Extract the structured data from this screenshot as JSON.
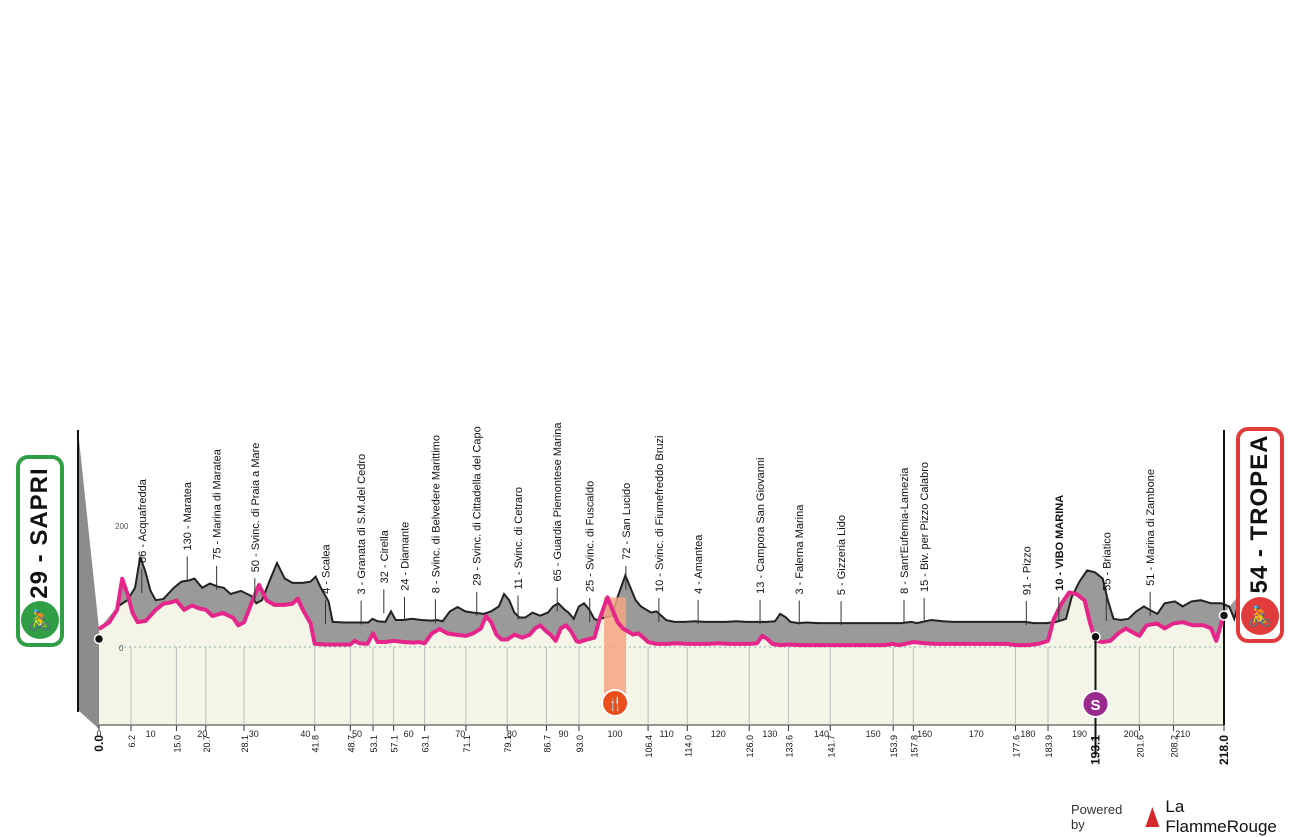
{
  "start_badge": {
    "label": "29 - SAPRI",
    "icon": "cyclist-icon"
  },
  "finish_badge": {
    "label": "54 - TROPEA",
    "icon": "cyclist-icon"
  },
  "footer": {
    "powered_by": "Powered by",
    "brand": "La FlammeRouge"
  },
  "colors": {
    "profile_gray": "#9a9a9a",
    "road_line": "#e6258a",
    "ground": "#f4f5e6",
    "feed_zone": "#f4a582",
    "sprint": "#9b2a8f",
    "start_green": "#2f9e44",
    "finish_red": "#e23b3b"
  },
  "chart_data": {
    "type": "area",
    "x_axis": {
      "range": [
        0,
        218
      ],
      "ticks": [
        0,
        10,
        20,
        30,
        40,
        50,
        60,
        70,
        80,
        90,
        100,
        110,
        120,
        130,
        140,
        150,
        160,
        170,
        180,
        190,
        200,
        210
      ],
      "unit": "km"
    },
    "y_axis": {
      "baseline_label": "0",
      "tick_labels": [
        "0",
        "200"
      ]
    },
    "profile": [
      [
        0,
        29
      ],
      [
        2,
        40
      ],
      [
        3.5,
        60
      ],
      [
        4.5,
        110
      ],
      [
        5.5,
        86
      ],
      [
        6.5,
        55
      ],
      [
        7.5,
        40
      ],
      [
        9,
        42
      ],
      [
        11,
        60
      ],
      [
        12.5,
        70
      ],
      [
        14,
        72
      ],
      [
        15,
        75
      ],
      [
        16.5,
        60
      ],
      [
        18,
        67
      ],
      [
        19.5,
        62
      ],
      [
        20.7,
        60
      ],
      [
        22,
        50
      ],
      [
        24,
        55
      ],
      [
        26,
        47
      ],
      [
        27,
        35
      ],
      [
        28.1,
        40
      ],
      [
        29.5,
        70
      ],
      [
        31,
        100
      ],
      [
        32.5,
        75
      ],
      [
        34,
        68
      ],
      [
        36,
        68
      ],
      [
        37.5,
        70
      ],
      [
        38.5,
        78
      ],
      [
        39.5,
        60
      ],
      [
        41,
        38
      ],
      [
        41.8,
        5
      ],
      [
        44,
        4
      ],
      [
        46,
        4
      ],
      [
        48.7,
        4
      ],
      [
        49.5,
        10
      ],
      [
        50.5,
        6
      ],
      [
        52,
        5
      ],
      [
        53.1,
        22
      ],
      [
        54,
        8
      ],
      [
        55.5,
        8
      ],
      [
        57.1,
        10
      ],
      [
        59,
        8
      ],
      [
        61,
        7
      ],
      [
        62,
        8
      ],
      [
        63.1,
        6
      ],
      [
        64.5,
        22
      ],
      [
        66,
        29
      ],
      [
        67.5,
        22
      ],
      [
        69,
        20
      ],
      [
        71.1,
        18
      ],
      [
        72.5,
        22
      ],
      [
        74,
        30
      ],
      [
        75,
        50
      ],
      [
        76,
        40
      ],
      [
        77,
        20
      ],
      [
        78,
        12
      ],
      [
        79.1,
        12
      ],
      [
        80.5,
        20
      ],
      [
        82,
        15
      ],
      [
        83.5,
        20
      ],
      [
        84.5,
        30
      ],
      [
        85.5,
        35
      ],
      [
        86.7,
        25
      ],
      [
        87.5,
        20
      ],
      [
        88.5,
        10
      ],
      [
        89.5,
        30
      ],
      [
        90.5,
        35
      ],
      [
        91.5,
        25
      ],
      [
        92.5,
        10
      ],
      [
        93,
        8
      ],
      [
        94.5,
        12
      ],
      [
        96,
        15
      ],
      [
        97,
        45
      ],
      [
        98.5,
        80
      ],
      [
        99.5,
        60
      ],
      [
        100.5,
        40
      ],
      [
        101.5,
        30
      ],
      [
        102.5,
        25
      ],
      [
        103.5,
        20
      ],
      [
        104.5,
        22
      ],
      [
        105.5,
        15
      ],
      [
        106.4,
        8
      ],
      [
        108,
        5
      ],
      [
        110,
        5
      ],
      [
        112,
        6
      ],
      [
        114,
        5
      ],
      [
        116,
        5
      ],
      [
        118,
        5
      ],
      [
        120,
        6
      ],
      [
        122,
        5
      ],
      [
        124,
        5
      ],
      [
        126,
        5
      ],
      [
        127.5,
        6
      ],
      [
        128.5,
        18
      ],
      [
        129.5,
        13
      ],
      [
        130.5,
        5
      ],
      [
        132,
        3
      ],
      [
        133.6,
        4
      ],
      [
        136,
        3
      ],
      [
        138,
        3
      ],
      [
        140,
        3
      ],
      [
        141.7,
        3
      ],
      [
        144,
        3
      ],
      [
        146,
        3
      ],
      [
        148,
        3
      ],
      [
        150,
        3
      ],
      [
        152,
        3
      ],
      [
        153.9,
        5
      ],
      [
        155,
        3
      ],
      [
        157.8,
        8
      ],
      [
        160,
        6
      ],
      [
        162,
        5
      ],
      [
        164,
        5
      ],
      [
        166,
        5
      ],
      [
        168,
        5
      ],
      [
        170,
        5
      ],
      [
        172,
        5
      ],
      [
        174,
        5
      ],
      [
        176,
        5
      ],
      [
        177.6,
        3
      ],
      [
        180,
        3
      ],
      [
        182,
        5
      ],
      [
        183.9,
        10
      ],
      [
        185,
        45
      ],
      [
        186.5,
        70
      ],
      [
        188,
        88
      ],
      [
        189.5,
        85
      ],
      [
        191,
        75
      ],
      [
        192,
        40
      ],
      [
        193.1,
        10
      ],
      [
        194.5,
        8
      ],
      [
        196,
        10
      ],
      [
        197.5,
        22
      ],
      [
        199,
        30
      ],
      [
        200,
        25
      ],
      [
        201.6,
        18
      ],
      [
        203,
        35
      ],
      [
        205,
        38
      ],
      [
        206.5,
        30
      ],
      [
        208.2,
        38
      ],
      [
        210,
        40
      ],
      [
        212,
        35
      ],
      [
        214,
        35
      ],
      [
        215.5,
        30
      ],
      [
        216.5,
        10
      ],
      [
        218,
        54
      ]
    ],
    "waypoints": [
      {
        "km": 6.2,
        "label": "86 - Acquafredda"
      },
      {
        "km": 15.0,
        "label": "130 - Maratea"
      },
      {
        "km": 20.7,
        "label": "75 - Marina di Maratea"
      },
      {
        "km": 28.1,
        "label": "50 - Svinc. di Praia a Mare"
      },
      {
        "km": 41.8,
        "label": "4 - Scalea"
      },
      {
        "km": 48.7,
        "label": "3 - Granata di S.M.del Cedro"
      },
      {
        "km": 53.1,
        "label": "32 - Cirella"
      },
      {
        "km": 57.1,
        "label": "24 - Diamante"
      },
      {
        "km": 63.1,
        "label": "8 - Svinc. di Belvedere Marittimo"
      },
      {
        "km": 71.1,
        "label": "29 - Svinc. di Cittadella del Capo"
      },
      {
        "km": 79.1,
        "label": "11 - Svinc. di Cetraro"
      },
      {
        "km": 86.7,
        "label": "65 - Guardia Piemontese Marina"
      },
      {
        "km": 93.0,
        "label": "25 - Svinc. di Fuscaldo"
      },
      {
        "km": 100.0,
        "label": "72 - San Lucido"
      },
      {
        "km": 106.4,
        "label": "10 - Svinc. di Fiumefreddo Bruzi"
      },
      {
        "km": 114.0,
        "label": "4 - Amantea"
      },
      {
        "km": 126.0,
        "label": "13 - Campora San Giovanni"
      },
      {
        "km": 133.6,
        "label": "3 - Falerna Marina"
      },
      {
        "km": 141.7,
        "label": "5 - Gizzeria Lido"
      },
      {
        "km": 153.9,
        "label": "8 - Sant'Eufemia-Lamezia"
      },
      {
        "km": 157.8,
        "label": "15 - Biv. per Pizzo Calabro"
      },
      {
        "km": 177.6,
        "label": "91 - Pizzo"
      },
      {
        "km": 183.9,
        "label": "10 - VIBO MARINA",
        "bold": true
      },
      {
        "km": 193.1,
        "label": "55 - Briatico"
      },
      {
        "km": 201.6,
        "label": "51 - Marina di Zambone"
      }
    ],
    "distance_labels": [
      {
        "km": 0.0,
        "label": "0.0",
        "bold": true
      },
      {
        "km": 6.2,
        "label": "6.2"
      },
      {
        "km": 15.0,
        "label": "15.0"
      },
      {
        "km": 20.7,
        "label": "20.7"
      },
      {
        "km": 28.1,
        "label": "28.1"
      },
      {
        "km": 41.8,
        "label": "41.8"
      },
      {
        "km": 48.7,
        "label": "48.7"
      },
      {
        "km": 53.1,
        "label": "53.1"
      },
      {
        "km": 57.1,
        "label": "57.1"
      },
      {
        "km": 63.1,
        "label": "63.1"
      },
      {
        "km": 71.1,
        "label": "71.1"
      },
      {
        "km": 79.1,
        "label": "79.1"
      },
      {
        "km": 86.7,
        "label": "86.7"
      },
      {
        "km": 93.0,
        "label": "93.0"
      },
      {
        "km": 106.4,
        "label": "106.4"
      },
      {
        "km": 114.0,
        "label": "114.0"
      },
      {
        "km": 126.0,
        "label": "126.0"
      },
      {
        "km": 133.6,
        "label": "133.6"
      },
      {
        "km": 141.7,
        "label": "141.7"
      },
      {
        "km": 153.9,
        "label": "153.9"
      },
      {
        "km": 157.8,
        "label": "157.8"
      },
      {
        "km": 177.6,
        "label": "177.6"
      },
      {
        "km": 183.9,
        "label": "183.9"
      },
      {
        "km": 193.1,
        "label": "193.1",
        "bold": true
      },
      {
        "km": 201.6,
        "label": "201.6"
      },
      {
        "km": 208.2,
        "label": "208.2"
      },
      {
        "km": 218.0,
        "label": "218.0",
        "bold": true
      }
    ],
    "feed_zone": {
      "km": 100,
      "icon": "feed-zone-icon",
      "glyph": "🍴"
    },
    "sprint": {
      "km": 193.1,
      "icon": "sprint-icon",
      "glyph": "S"
    }
  }
}
